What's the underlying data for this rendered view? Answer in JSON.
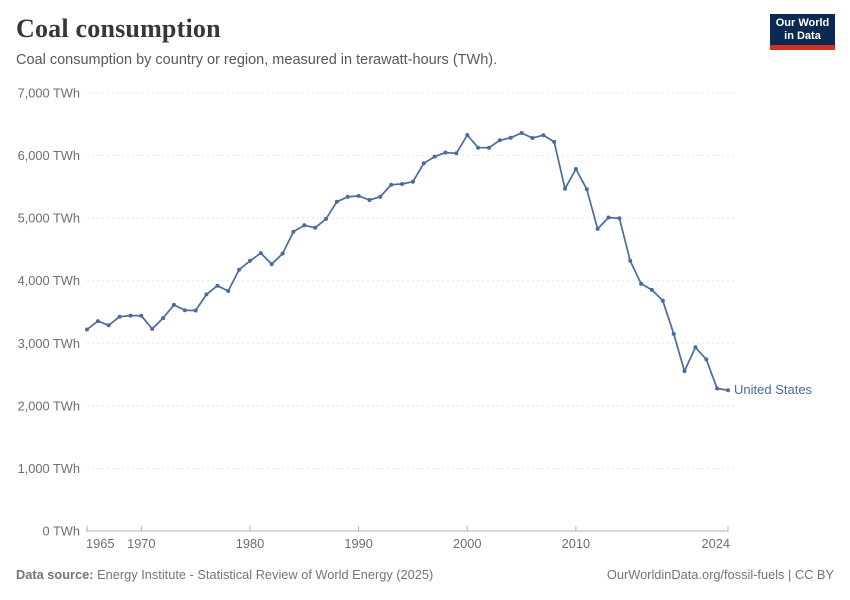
{
  "header": {
    "title": "Coal consumption",
    "subtitle": "Coal consumption by country or region, measured in terawatt-hours (TWh).",
    "logo": {
      "line1": "Our World",
      "line2": "in Data"
    }
  },
  "chart_data": {
    "type": "line",
    "title": "Coal consumption",
    "unit": "TWh",
    "xlabel": "",
    "ylabel": "",
    "xlim": [
      1965,
      2024
    ],
    "ylim": [
      0,
      7000
    ],
    "grid": "horizontal-dashed",
    "legend_position": "end-of-line-label",
    "x_ticks": [
      1965,
      1970,
      1980,
      1990,
      2000,
      2010,
      2024
    ],
    "y_ticks": [
      0,
      1000,
      2000,
      3000,
      4000,
      5000,
      6000,
      7000
    ],
    "y_tick_labels": [
      "0 TWh",
      "1,000 TWh",
      "2,000 TWh",
      "3,000 TWh",
      "4,000 TWh",
      "5,000 TWh",
      "6,000 TWh",
      "7,000 TWh"
    ],
    "series": [
      {
        "name": "United States",
        "color": "#4C6A9C",
        "x": [
          1965,
          1966,
          1967,
          1968,
          1969,
          1970,
          1971,
          1972,
          1973,
          1974,
          1975,
          1976,
          1977,
          1978,
          1979,
          1980,
          1981,
          1982,
          1983,
          1984,
          1985,
          1986,
          1987,
          1988,
          1989,
          1990,
          1991,
          1992,
          1993,
          1994,
          1995,
          1996,
          1997,
          1998,
          1999,
          2000,
          2001,
          2002,
          2003,
          2004,
          2005,
          2006,
          2007,
          2008,
          2009,
          2010,
          2011,
          2012,
          2013,
          2014,
          2015,
          2016,
          2017,
          2018,
          2019,
          2020,
          2021,
          2022,
          2023,
          2024
        ],
        "values": [
          3221,
          3354,
          3288,
          3425,
          3443,
          3441,
          3230,
          3402,
          3614,
          3527,
          3524,
          3781,
          3920,
          3836,
          4176,
          4316,
          4442,
          4265,
          4434,
          4784,
          4886,
          4846,
          4988,
          5262,
          5339,
          5355,
          5290,
          5343,
          5535,
          5546,
          5583,
          5877,
          5983,
          6047,
          6037,
          6329,
          6126,
          6126,
          6244,
          6286,
          6360,
          6281,
          6325,
          6219,
          5469,
          5786,
          5461,
          4828,
          5011,
          4997,
          4319,
          3953,
          3853,
          3681,
          3150,
          2556,
          2936,
          2742,
          2278,
          2250
        ]
      }
    ]
  },
  "footer": {
    "source_label": "Data source:",
    "source_text": " Energy Institute - Statistical Review of World Energy (2025)",
    "credit": "OurWorldinData.org/fossil-fuels | CC BY"
  },
  "colors": {
    "line": "#4C6A9C",
    "grid": "#e4e4e4",
    "axis": "#b0b0b0",
    "tick_label": "#6e6e6e",
    "title": "#373737",
    "subtitle": "#595959",
    "footer": "#757575",
    "logo_bg": "#0b2a52",
    "logo_red": "#d0321f"
  }
}
